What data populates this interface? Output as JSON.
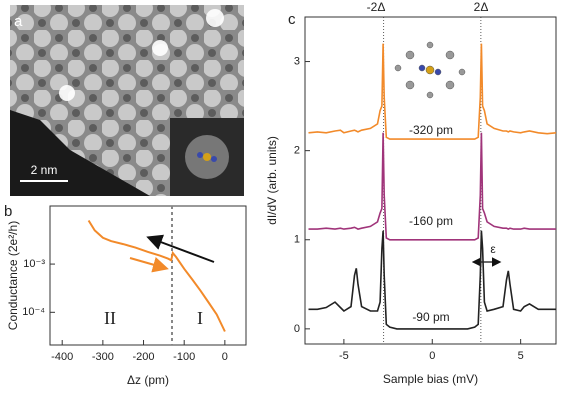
{
  "image_panel": {
    "label": "a",
    "scale_bar": "2 nm"
  },
  "chart_data": [
    {
      "type": "line",
      "panel_label": "b",
      "x_label": "Δz (pm)",
      "y_label": "Conductance (2e²/h)",
      "log_y": true,
      "xlim": [
        -430,
        52
      ],
      "ylim": [
        2.1e-05,
        0.016
      ],
      "xticks": [
        -400,
        -300,
        -200,
        -100,
        0
      ],
      "yticks": [
        {
          "value": 0.0001,
          "label": "10⁻⁴"
        },
        {
          "value": 0.001,
          "label": "10⁻³"
        }
      ],
      "vlines": [
        -130
      ],
      "annotations": [
        "II",
        "I"
      ],
      "x": [
        -335,
        -320,
        -300,
        -280,
        -250,
        -220,
        -190,
        -160,
        -140,
        -132,
        -128,
        -120,
        -100,
        -80,
        -60,
        -40,
        -20,
        0
      ],
      "series": [
        {
          "color": "#f28a2a",
          "values": [
            0.008,
            0.005,
            0.0035,
            0.003,
            0.0026,
            0.0022,
            0.0018,
            0.0015,
            0.0013,
            0.0012,
            0.0017,
            0.0014,
            0.0008,
            0.00048,
            0.00028,
            0.00016,
            9e-05,
            4e-05
          ]
        }
      ]
    },
    {
      "type": "line",
      "panel_label": "c",
      "x_label": "Sample bias (mV)",
      "y_label": "dI/dV (arb. units)",
      "log_y": false,
      "xlim": [
        -7.2,
        7
      ],
      "ylim": [
        -0.17,
        3.5
      ],
      "xticks": [
        -5,
        0,
        5
      ],
      "yticks": [
        0,
        1,
        2,
        3
      ],
      "vlines": [
        -2.75,
        2.75
      ],
      "top_labels": [
        "-2Δ",
        "2Δ"
      ],
      "annotations": [
        "-320 pm",
        "-160 pm",
        "-90 pm",
        "ε"
      ],
      "x": [
        -7,
        -6.5,
        -6,
        -5.5,
        -5.2,
        -5,
        -4.6,
        -4.4,
        -4.3,
        -4.2,
        -4,
        -3.5,
        -3.1,
        -2.95,
        -2.85,
        -2.78,
        -2.72,
        -2.6,
        -2.4,
        -2,
        -1,
        0,
        1,
        2,
        2.4,
        2.6,
        2.72,
        2.78,
        2.85,
        2.95,
        3.1,
        3.5,
        4,
        4.2,
        4.3,
        4.4,
        4.6,
        5,
        5.2,
        5.5,
        6,
        6.5,
        7
      ],
      "series": [
        {
          "color": "#f28a2a",
          "values": [
            2.2,
            2.21,
            2.2,
            2.22,
            2.23,
            2.2,
            2.22,
            2.23,
            2.22,
            2.21,
            2.23,
            2.25,
            2.3,
            2.45,
            2.5,
            3.2,
            2.6,
            2.15,
            2.13,
            2.13,
            2.13,
            2.13,
            2.13,
            2.13,
            2.13,
            2.15,
            2.6,
            3.2,
            2.5,
            2.45,
            2.3,
            2.25,
            2.22,
            2.22,
            2.21,
            2.22,
            2.21,
            2.2,
            2.21,
            2.22,
            2.2,
            2.19,
            2.2
          ]
        },
        {
          "color": "#a0347a",
          "values": [
            1.12,
            1.12,
            1.13,
            1.12,
            1.13,
            1.12,
            1.13,
            1.14,
            1.13,
            1.12,
            1.13,
            1.15,
            1.2,
            1.3,
            1.35,
            2.2,
            1.5,
            1.02,
            1.0,
            1.0,
            1.0,
            1.0,
            1.0,
            1.0,
            1.0,
            1.02,
            1.5,
            2.2,
            1.35,
            1.3,
            1.2,
            1.15,
            1.13,
            1.13,
            1.12,
            1.13,
            1.12,
            1.12,
            1.13,
            1.12,
            1.12,
            1.12,
            1.12
          ]
        },
        {
          "color": "#222222",
          "values": [
            0.22,
            0.22,
            0.24,
            0.3,
            0.24,
            0.2,
            0.25,
            0.6,
            0.68,
            0.5,
            0.25,
            0.2,
            0.2,
            0.3,
            0.9,
            1.1,
            0.6,
            0.05,
            0.02,
            0.0,
            0.0,
            0.0,
            0.0,
            0.0,
            0.02,
            0.05,
            0.6,
            1.1,
            0.9,
            0.3,
            0.2,
            0.22,
            0.25,
            0.55,
            0.65,
            0.5,
            0.22,
            0.2,
            0.25,
            0.28,
            0.22,
            0.22,
            0.22
          ]
        }
      ]
    }
  ]
}
